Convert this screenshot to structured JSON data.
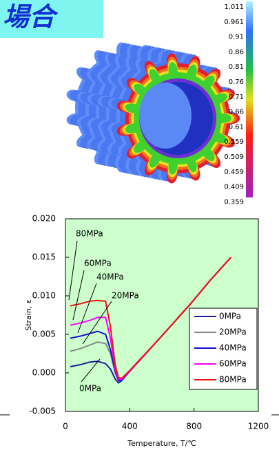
{
  "header": {
    "title": "場合"
  },
  "colorbar": {
    "labels": [
      1.011,
      0.961,
      0.91,
      0.86,
      0.81,
      0.76,
      0.71,
      0.66,
      0.61,
      0.559,
      0.509,
      0.459,
      0.409,
      0.359
    ]
  },
  "chart_data": {
    "type": "line",
    "xlabel": "Temperature, T/℃",
    "ylabel": "Strain, ε",
    "x": [
      30,
      100,
      150,
      200,
      250,
      280,
      310,
      330,
      350,
      400,
      600,
      780,
      800,
      820,
      900,
      1030
    ],
    "series": [
      {
        "name": "0MPa",
        "color": "#1a1a99",
        "values": [
          0.0008,
          0.0011,
          0.0014,
          0.0015,
          0.0012,
          0.0005,
          -0.0008,
          -0.0013,
          -0.001,
          0.0002,
          0.0048,
          0.009,
          0.0095,
          0.01,
          0.012,
          0.015
        ]
      },
      {
        "name": "20MPa",
        "color": "#888888",
        "values": [
          0.0028,
          0.0032,
          0.0036,
          0.004,
          0.0038,
          0.0025,
          0.0,
          -0.001,
          -0.0009,
          0.0002,
          0.0048,
          0.009,
          0.0095,
          0.01,
          0.012,
          0.015
        ]
      },
      {
        "name": "40MPa",
        "color": "#1010cc",
        "values": [
          0.0045,
          0.0048,
          0.0051,
          0.0054,
          0.005,
          0.003,
          0.0002,
          -0.001,
          -0.0009,
          0.0002,
          0.0048,
          0.009,
          0.0095,
          0.01,
          0.012,
          0.015
        ]
      },
      {
        "name": "60MPa",
        "color": "#ff00ff",
        "values": [
          0.0062,
          0.0065,
          0.0068,
          0.0072,
          0.0072,
          0.0045,
          0.0005,
          -0.0008,
          -0.0008,
          0.0002,
          0.0048,
          0.009,
          0.0095,
          0.01,
          0.012,
          0.015
        ]
      },
      {
        "name": "80MPa",
        "color": "#ee1111",
        "values": [
          0.0087,
          0.009,
          0.0093,
          0.0094,
          0.0093,
          0.006,
          0.001,
          -0.0006,
          -0.0007,
          0.0003,
          0.0048,
          0.009,
          0.0095,
          0.01,
          0.012,
          0.015
        ]
      }
    ],
    "annotations": [
      "80MPa",
      "60MPa",
      "40MPa",
      "20MPa",
      "0MPa"
    ],
    "xlim": [
      0,
      1200
    ],
    "xticks": [
      0,
      400,
      800,
      1200
    ],
    "ylim": [
      -0.005,
      0.02
    ],
    "yticks": [
      {
        "value": -0.005,
        "label": "-0.005"
      },
      {
        "value": 0,
        "label": "0.000"
      },
      {
        "value": 0.005,
        "label": "0.005"
      },
      {
        "value": 0.01,
        "label": "0.010"
      },
      {
        "value": 0.015,
        "label": "0.015"
      },
      {
        "value": 0.02,
        "label": "0.020"
      }
    ],
    "background": "#ccffcc"
  }
}
